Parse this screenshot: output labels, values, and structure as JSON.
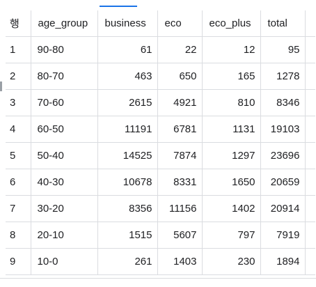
{
  "table": {
    "columns": [
      "행",
      "age_group",
      "business",
      "eco",
      "eco_plus",
      "total"
    ],
    "rows": [
      {
        "row": "1",
        "age_group": "90-80",
        "business": "61",
        "eco": "22",
        "eco_plus": "12",
        "total": "95"
      },
      {
        "row": "2",
        "age_group": "80-70",
        "business": "463",
        "eco": "650",
        "eco_plus": "165",
        "total": "1278"
      },
      {
        "row": "3",
        "age_group": "70-60",
        "business": "2615",
        "eco": "4921",
        "eco_plus": "810",
        "total": "8346"
      },
      {
        "row": "4",
        "age_group": "60-50",
        "business": "11191",
        "eco": "6781",
        "eco_plus": "1131",
        "total": "19103"
      },
      {
        "row": "5",
        "age_group": "50-40",
        "business": "14525",
        "eco": "7874",
        "eco_plus": "1297",
        "total": "23696"
      },
      {
        "row": "6",
        "age_group": "40-30",
        "business": "10678",
        "eco": "8331",
        "eco_plus": "1650",
        "total": "20659"
      },
      {
        "row": "7",
        "age_group": "30-20",
        "business": "8356",
        "eco": "11156",
        "eco_plus": "1402",
        "total": "20914"
      },
      {
        "row": "8",
        "age_group": "20-10",
        "business": "1515",
        "eco": "5607",
        "eco_plus": "797",
        "total": "7919"
      },
      {
        "row": "9",
        "age_group": "10-0",
        "business": "261",
        "eco": "1403",
        "eco_plus": "230",
        "total": "1894"
      }
    ]
  },
  "colors": {
    "text": "#202124",
    "grid": "#dadce0",
    "tab_accent": "#1a73e8"
  }
}
